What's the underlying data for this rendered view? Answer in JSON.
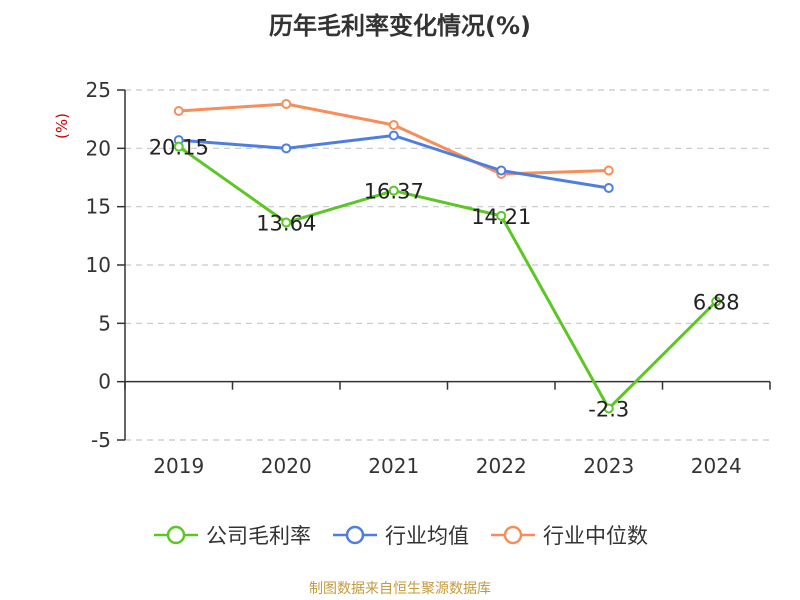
{
  "chart_data": {
    "type": "line",
    "title": "历年毛利率变化情况(%)",
    "ylabel": "(%)",
    "xlabel": "",
    "categories": [
      "2019",
      "2020",
      "2021",
      "2022",
      "2023",
      "2024"
    ],
    "ylim": [
      -5,
      25
    ],
    "yticks": [
      -5,
      0,
      5,
      10,
      15,
      20,
      25
    ],
    "grid": "horizontal-dashed",
    "legend_position": "bottom",
    "series": [
      {
        "name": "公司毛利率",
        "color": "#5cc625",
        "values": [
          20.15,
          13.64,
          16.37,
          14.21,
          -2.3,
          6.88
        ],
        "labels": [
          "20.15",
          "13.64",
          "16.37",
          "14.21",
          "-2.3",
          "6.88"
        ]
      },
      {
        "name": "行业均值",
        "color": "#4e7fe0",
        "values": [
          20.7,
          20.0,
          21.1,
          18.1,
          16.6,
          null
        ]
      },
      {
        "name": "行业中位数",
        "color": "#f58e5a",
        "values": [
          23.2,
          23.8,
          22.0,
          17.8,
          18.1,
          null
        ]
      }
    ]
  },
  "source": "制图数据来自恒生聚源数据库",
  "colors": {
    "axis": "#333333",
    "grid": "#c8c8c8",
    "ylabel": "#cc0000",
    "source": "#c49a3c"
  }
}
